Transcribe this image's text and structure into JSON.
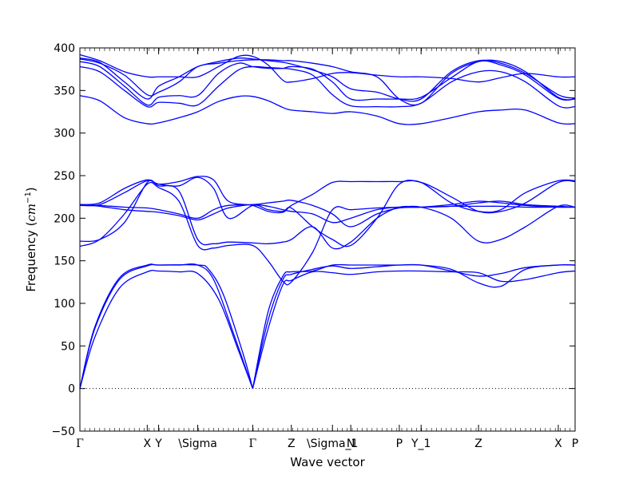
{
  "chart_data": {
    "type": "line",
    "title": "",
    "xlabel": "Wave vector",
    "ylabel": "Frequency ($cm^{-1}$)",
    "ylabel_parts": {
      "main": "Frequency (",
      "italic": "cm",
      "sup": "−1",
      "close": ")"
    },
    "ylim": [
      -50,
      400
    ],
    "yticks": [
      -50,
      0,
      50,
      100,
      150,
      200,
      250,
      300,
      350,
      400
    ],
    "xlim": [
      0,
      1
    ],
    "grid": false,
    "legend": "none",
    "zero_line": {
      "y": 0,
      "style": "dotted",
      "color": "#000000"
    },
    "line_color": "#0000ff",
    "high_symmetry_points": [
      {
        "label": "Γ",
        "x": 0.0
      },
      {
        "label": "X",
        "x": 0.136
      },
      {
        "label": "Y",
        "x": 0.159
      },
      {
        "label": "\\Sigma",
        "x": 0.238
      },
      {
        "label": "Γ",
        "x": 0.349
      },
      {
        "label": "Z",
        "x": 0.427
      },
      {
        "label": "\\Sigma_1",
        "x": 0.51
      },
      {
        "label": "N",
        "x": 0.547
      },
      {
        "label": "P",
        "x": 0.645
      },
      {
        "label": "Y_1",
        "x": 0.689
      },
      {
        "label": "Z",
        "x": 0.805
      },
      {
        "label": "X",
        "x": 0.966
      },
      {
        "label": "P",
        "x": 1.0
      }
    ],
    "series": [
      {
        "x": [
          0,
          0.03,
          0.08,
          0.136,
          0.159,
          0.2,
          0.238,
          0.28,
          0.32,
          0.349
        ],
        "y": [
          0,
          60,
          118,
          137,
          138,
          137,
          135,
          105,
          45,
          0
        ]
      },
      {
        "x": [
          0,
          0.03,
          0.08,
          0.136,
          0.159,
          0.2,
          0.238,
          0.27,
          0.31,
          0.349
        ],
        "y": [
          0,
          70,
          128,
          144,
          145,
          145,
          145,
          128,
          65,
          0
        ]
      },
      {
        "x": [
          0,
          0.03,
          0.08,
          0.136,
          0.159,
          0.238,
          0.26,
          0.29,
          0.33,
          0.349
        ],
        "y": [
          0,
          72,
          130,
          145,
          145,
          145,
          140,
          110,
          40,
          0
        ]
      },
      {
        "x": [
          0.349,
          0.38,
          0.41,
          0.427,
          0.47,
          0.51,
          0.547,
          0.6,
          0.645,
          0.689,
          0.75,
          0.805,
          0.85,
          0.9,
          0.966,
          1.0
        ],
        "y": [
          0,
          70,
          122,
          127,
          137,
          136,
          134,
          137,
          138,
          138,
          137,
          136,
          126,
          128,
          136,
          138
        ]
      },
      {
        "x": [
          0.349,
          0.38,
          0.41,
          0.427,
          0.47,
          0.51,
          0.547,
          0.6,
          0.645,
          0.689,
          0.75,
          0.805,
          0.85,
          0.9,
          0.966,
          1.0
        ],
        "y": [
          0,
          80,
          128,
          134,
          140,
          144,
          141,
          143,
          145,
          145,
          140,
          124,
          120,
          140,
          145,
          145
        ]
      },
      {
        "x": [
          0.349,
          0.38,
          0.41,
          0.427,
          0.47,
          0.51,
          0.547,
          0.6,
          0.645,
          0.689,
          0.75,
          0.805,
          0.85,
          0.9,
          0.966,
          1.0
        ],
        "y": [
          0,
          90,
          132,
          137,
          138,
          145,
          145,
          145,
          145,
          145,
          138,
          132,
          135,
          142,
          145,
          145
        ]
      },
      {
        "x": [
          0,
          0.04,
          0.09,
          0.136,
          0.159,
          0.2,
          0.238,
          0.27,
          0.3,
          0.349,
          0.38,
          0.41,
          0.427,
          0.47,
          0.51,
          0.547,
          0.6,
          0.645,
          0.689,
          0.75,
          0.805,
          0.85,
          0.9,
          0.966,
          1.0
        ],
        "y": [
          167,
          175,
          205,
          240,
          236,
          220,
          168,
          165,
          168,
          168,
          150,
          126,
          125,
          160,
          210,
          210,
          212,
          213,
          213,
          200,
          173,
          175,
          190,
          214,
          213
        ]
      },
      {
        "x": [
          0,
          0.04,
          0.09,
          0.136,
          0.159,
          0.2,
          0.238,
          0.27,
          0.3,
          0.349,
          0.38,
          0.41,
          0.427,
          0.47,
          0.51,
          0.547,
          0.6,
          0.645,
          0.689,
          0.75,
          0.805,
          0.85,
          0.9,
          0.966,
          1.0
        ],
        "y": [
          173,
          175,
          195,
          242,
          238,
          232,
          175,
          170,
          172,
          171,
          170,
          172,
          175,
          190,
          165,
          172,
          200,
          213,
          213,
          214,
          218,
          220,
          216,
          214,
          213
        ]
      },
      {
        "x": [
          0,
          0.04,
          0.09,
          0.136,
          0.159,
          0.2,
          0.238,
          0.27,
          0.3,
          0.349,
          0.38,
          0.41,
          0.427,
          0.47,
          0.51,
          0.547,
          0.6,
          0.645,
          0.689,
          0.75,
          0.805,
          0.85,
          0.9,
          0.966,
          1.0
        ],
        "y": [
          215,
          216,
          230,
          244,
          240,
          238,
          248,
          235,
          200,
          215,
          210,
          208,
          212,
          190,
          175,
          168,
          200,
          240,
          242,
          225,
          208,
          208,
          218,
          242,
          243
        ]
      },
      {
        "x": [
          0,
          0.04,
          0.09,
          0.136,
          0.159,
          0.2,
          0.238,
          0.27,
          0.3,
          0.349,
          0.38,
          0.41,
          0.427,
          0.47,
          0.51,
          0.547,
          0.6,
          0.645,
          0.689,
          0.75,
          0.805,
          0.85,
          0.9,
          0.966,
          1.0
        ],
        "y": [
          216,
          218,
          235,
          245,
          240,
          243,
          249,
          245,
          220,
          215,
          208,
          207,
          215,
          228,
          242,
          243,
          243,
          243,
          242,
          218,
          208,
          210,
          230,
          244,
          244
        ]
      },
      {
        "x": [
          0,
          0.04,
          0.09,
          0.136,
          0.159,
          0.2,
          0.238,
          0.27,
          0.3,
          0.349,
          0.38,
          0.41,
          0.427,
          0.47,
          0.51,
          0.547,
          0.6,
          0.645,
          0.689,
          0.75,
          0.805,
          0.85,
          0.9,
          0.966,
          1.0
        ],
        "y": [
          216,
          215,
          213,
          212,
          210,
          205,
          200,
          210,
          215,
          216,
          218,
          220,
          221,
          215,
          205,
          190,
          205,
          212,
          213,
          216,
          220,
          218,
          215,
          213,
          213
        ]
      },
      {
        "x": [
          0,
          0.04,
          0.09,
          0.136,
          0.159,
          0.2,
          0.238,
          0.27,
          0.3,
          0.349,
          0.38,
          0.41,
          0.427,
          0.47,
          0.51,
          0.547,
          0.6,
          0.645,
          0.689,
          0.75,
          0.805,
          0.85,
          0.9,
          0.966,
          1.0
        ],
        "y": [
          216,
          214,
          210,
          208,
          207,
          203,
          198,
          205,
          212,
          216,
          214,
          210,
          208,
          205,
          195,
          200,
          210,
          213,
          213,
          214,
          214,
          214,
          213,
          213,
          213
        ]
      },
      {
        "x": [
          0,
          0.04,
          0.09,
          0.136,
          0.159,
          0.2,
          0.238,
          0.28,
          0.32,
          0.349,
          0.38,
          0.41,
          0.427,
          0.47,
          0.51,
          0.547,
          0.6,
          0.645,
          0.689,
          0.75,
          0.805,
          0.85,
          0.9,
          0.966,
          1.0
        ],
        "y": [
          344,
          338,
          318,
          311,
          312,
          318,
          325,
          337,
          343,
          343,
          338,
          330,
          327,
          325,
          323,
          325,
          320,
          311,
          311,
          318,
          325,
          327,
          327,
          312,
          311
        ]
      },
      {
        "x": [
          0,
          0.04,
          0.09,
          0.136,
          0.159,
          0.2,
          0.238,
          0.28,
          0.32,
          0.349,
          0.38,
          0.41,
          0.427,
          0.47,
          0.51,
          0.547,
          0.6,
          0.645,
          0.689,
          0.75,
          0.805,
          0.85,
          0.9,
          0.966,
          1.0
        ],
        "y": [
          378,
          372,
          350,
          331,
          336,
          335,
          333,
          355,
          374,
          378,
          377,
          376,
          375,
          368,
          345,
          332,
          331,
          331,
          335,
          360,
          372,
          372,
          360,
          332,
          331
        ]
      },
      {
        "x": [
          0,
          0.04,
          0.09,
          0.136,
          0.159,
          0.2,
          0.238,
          0.28,
          0.32,
          0.349,
          0.38,
          0.41,
          0.427,
          0.47,
          0.51,
          0.547,
          0.6,
          0.645,
          0.689,
          0.75,
          0.805,
          0.85,
          0.9,
          0.966,
          1.0
        ],
        "y": [
          384,
          378,
          355,
          333,
          342,
          344,
          344,
          370,
          382,
          378,
          376,
          376,
          378,
          375,
          360,
          340,
          340,
          340,
          342,
          365,
          384,
          380,
          368,
          341,
          340
        ]
      },
      {
        "x": [
          0,
          0.04,
          0.09,
          0.136,
          0.159,
          0.2,
          0.238,
          0.28,
          0.32,
          0.349,
          0.38,
          0.41,
          0.427,
          0.47,
          0.51,
          0.547,
          0.6,
          0.645,
          0.689,
          0.75,
          0.805,
          0.85,
          0.9,
          0.966,
          1.0
        ],
        "y": [
          388,
          383,
          360,
          340,
          355,
          366,
          378,
          384,
          388,
          387,
          385,
          383,
          381,
          374,
          366,
          352,
          348,
          340,
          340,
          372,
          385,
          382,
          370,
          345,
          341
        ]
      },
      {
        "x": [
          0,
          0.04,
          0.09,
          0.136,
          0.159,
          0.2,
          0.238,
          0.28,
          0.32,
          0.349,
          0.38,
          0.41,
          0.427,
          0.47,
          0.51,
          0.547,
          0.6,
          0.645,
          0.689,
          0.75,
          0.805,
          0.85,
          0.9,
          0.966,
          1.0
        ],
        "y": [
          392,
          385,
          372,
          366,
          366,
          366,
          366,
          378,
          390,
          390,
          380,
          362,
          360,
          364,
          370,
          371,
          368,
          366,
          366,
          364,
          360,
          365,
          370,
          366,
          366
        ]
      },
      {
        "x": [
          0,
          0.04,
          0.09,
          0.136,
          0.159,
          0.2,
          0.238,
          0.28,
          0.32,
          0.349,
          0.38,
          0.41,
          0.427,
          0.47,
          0.51,
          0.547,
          0.6,
          0.645,
          0.689,
          0.75,
          0.805,
          0.85,
          0.9,
          0.966,
          1.0
        ],
        "y": [
          387,
          382,
          368,
          345,
          348,
          360,
          378,
          382,
          385,
          386,
          386,
          385,
          385,
          382,
          378,
          372,
          366,
          340,
          335,
          370,
          384,
          384,
          372,
          342,
          340
        ]
      }
    ]
  }
}
